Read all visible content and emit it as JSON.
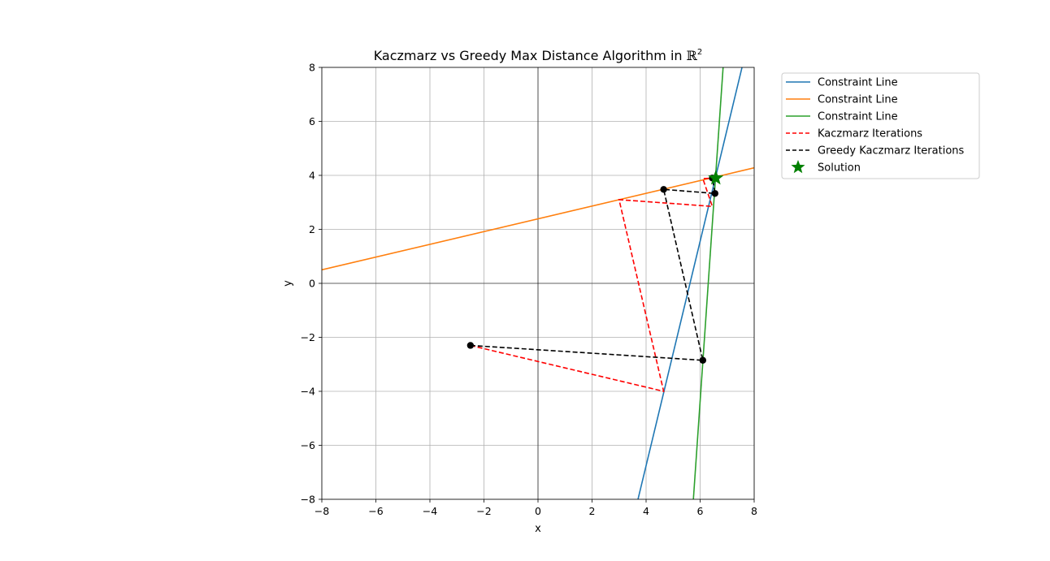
{
  "chart_data": {
    "type": "line",
    "title": "Kaczmarz vs Greedy Max Distance Algorithm in",
    "title_symbol": "ℝ",
    "title_superscript": "2",
    "xlabel": "x",
    "ylabel": "y",
    "xlim": [
      -8,
      8
    ],
    "ylim": [
      -8,
      8
    ],
    "xticks": [
      -8,
      -6,
      -4,
      -2,
      0,
      2,
      4,
      6,
      8
    ],
    "yticks": [
      -8,
      -6,
      -4,
      -2,
      0,
      2,
      4,
      6,
      8
    ],
    "xtick_labels": [
      "−8",
      "−6",
      "−4",
      "−2",
      "0",
      "2",
      "4",
      "6",
      "8"
    ],
    "ytick_labels": [
      "−8",
      "−6",
      "−4",
      "−2",
      "0",
      "2",
      "4",
      "6",
      "8"
    ],
    "grid": true,
    "legend_position": "outside upper-right",
    "lines": [
      {
        "name": "Constraint Line",
        "color": "#1f77b4",
        "style": "solid",
        "x": [
          3.7,
          7.55
        ],
        "y": [
          -8,
          8
        ]
      },
      {
        "name": "Constraint Line",
        "color": "#ff7f0e",
        "style": "solid",
        "x": [
          -8,
          8
        ],
        "y": [
          0.5,
          4.28
        ]
      },
      {
        "name": "Constraint Line",
        "color": "#2ca02c",
        "style": "solid",
        "x": [
          5.75,
          6.85
        ],
        "y": [
          -8,
          8
        ]
      }
    ],
    "series": [
      {
        "name": "Kaczmarz Iterations",
        "color": "#ff0000",
        "style": "dashed",
        "markers": false,
        "x": [
          -2.5,
          4.65,
          3.0,
          6.45,
          6.1,
          6.6
        ],
        "y": [
          -2.3,
          -4.0,
          3.1,
          2.85,
          3.88,
          3.9
        ]
      },
      {
        "name": "Greedy Kaczmarz Iterations",
        "color": "#000000",
        "style": "dashed",
        "markers": true,
        "x": [
          -2.5,
          6.1,
          4.65,
          6.55,
          6.45
        ],
        "y": [
          -2.3,
          -2.85,
          3.48,
          3.33,
          3.9
        ]
      }
    ],
    "solution": {
      "name": "Solution",
      "color": "#008000",
      "marker": "star",
      "x": 6.58,
      "y": 3.9
    }
  }
}
